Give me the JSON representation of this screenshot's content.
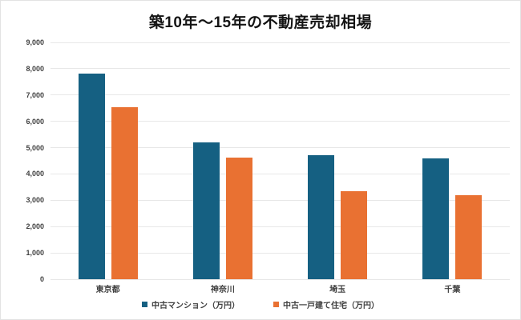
{
  "title": "築10年〜15年の不動産売却相場",
  "chart_data": {
    "type": "bar",
    "title": "築10年〜15年の不動産売却相場",
    "categories": [
      "東京都",
      "神奈川",
      "埼玉",
      "千葉"
    ],
    "series": [
      {
        "name": "中古マンション（万円）",
        "color": "#156082",
        "values": [
          7800,
          5200,
          4700,
          4600
        ]
      },
      {
        "name": "中古一戸建て住宅（万円）",
        "color": "#E97132",
        "values": [
          6550,
          4620,
          3350,
          3200
        ]
      }
    ],
    "ylim": [
      0,
      9000
    ],
    "ytick_step": 1000,
    "ytick_labels": [
      "0",
      "1,000",
      "2,000",
      "3,000",
      "4,000",
      "5,000",
      "6,000",
      "7,000",
      "8,000",
      "9,000"
    ],
    "xlabel": "",
    "ylabel": "",
    "grid": true,
    "legend_position": "bottom"
  },
  "colors": {
    "background": "#FFFFFF",
    "gridline": "#E7E7E7",
    "axis_text": "#3F3F3F",
    "title_text": "#141414",
    "series1": "#156082",
    "series2": "#E97132"
  }
}
